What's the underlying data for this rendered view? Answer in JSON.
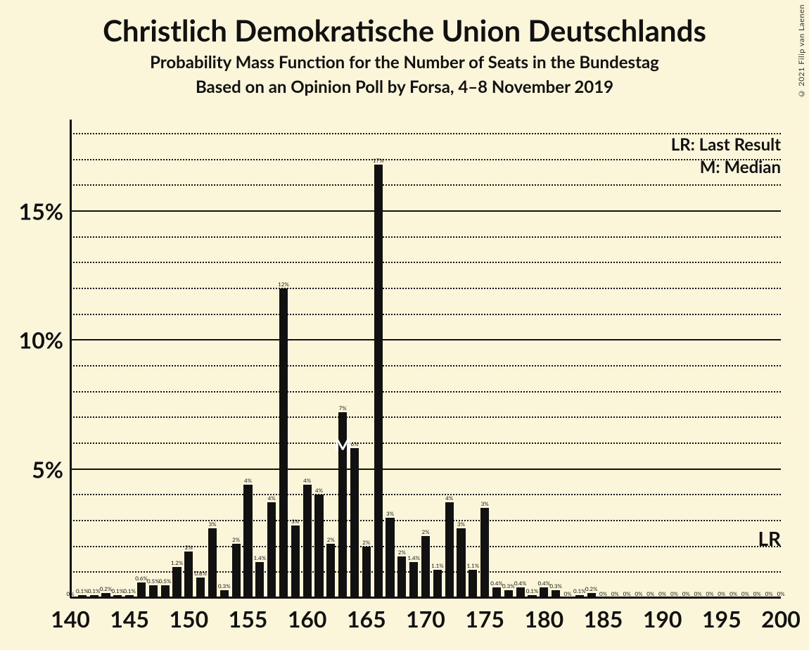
{
  "background_color": "#fbf6da",
  "bar_color": "#111111",
  "grid_color": "#111111",
  "title": "Christlich Demokratische Union Deutschlands",
  "subtitle1": "Probability Mass Function for the Number of Seats in the Bundestag",
  "subtitle2": "Based on an Opinion Poll by Forsa, 4–8 November 2019",
  "copyright": "© 2021 Filip van Laenen",
  "legend_lr": "LR: Last Result",
  "legend_m": "M: Median",
  "lr_text": "LR",
  "median_marker": "M",
  "median_seat": 163,
  "lr_y_percent": 2.3,
  "title_fontsize": 42,
  "subtitle_fontsize": 24,
  "axis_label_fontsize": 32,
  "legend_fontsize": 24,
  "bar_label_fontsize": 8,
  "y": {
    "min": 0,
    "max": 18,
    "major_ticks": [
      5,
      10,
      15
    ],
    "major_labels": [
      "5%",
      "10%",
      "15%"
    ],
    "minor_step": 1
  },
  "x": {
    "min": 140,
    "max": 200,
    "tick_step": 5,
    "tick_labels": [
      "140",
      "145",
      "150",
      "155",
      "160",
      "165",
      "170",
      "175",
      "180",
      "185",
      "190",
      "195",
      "200"
    ]
  },
  "bars": [
    {
      "seat": 140,
      "v": 0,
      "label": "0%"
    },
    {
      "seat": 141,
      "v": 0.1,
      "label": "0.1%"
    },
    {
      "seat": 142,
      "v": 0.1,
      "label": "0.1%"
    },
    {
      "seat": 143,
      "v": 0.2,
      "label": "0.2%"
    },
    {
      "seat": 144,
      "v": 0.1,
      "label": "0.1%"
    },
    {
      "seat": 145,
      "v": 0.1,
      "label": "0.1%"
    },
    {
      "seat": 146,
      "v": 0.6,
      "label": "0.6%"
    },
    {
      "seat": 147,
      "v": 0.5,
      "label": "0.5%"
    },
    {
      "seat": 148,
      "v": 0.5,
      "label": "0.5%"
    },
    {
      "seat": 149,
      "v": 1.2,
      "label": "1.2%"
    },
    {
      "seat": 150,
      "v": 1.8,
      "label": "2%"
    },
    {
      "seat": 151,
      "v": 0.8,
      "label": "0.8%"
    },
    {
      "seat": 152,
      "v": 2.7,
      "label": "3%"
    },
    {
      "seat": 153,
      "v": 0.3,
      "label": "0.3%"
    },
    {
      "seat": 154,
      "v": 2.1,
      "label": "2%"
    },
    {
      "seat": 155,
      "v": 4.4,
      "label": "4%"
    },
    {
      "seat": 156,
      "v": 1.4,
      "label": "1.4%"
    },
    {
      "seat": 157,
      "v": 3.7,
      "label": "4%"
    },
    {
      "seat": 158,
      "v": 12,
      "label": "12%"
    },
    {
      "seat": 159,
      "v": 2.8,
      "label": "3%"
    },
    {
      "seat": 160,
      "v": 4.4,
      "label": "4%"
    },
    {
      "seat": 161,
      "v": 4.0,
      "label": "4%"
    },
    {
      "seat": 162,
      "v": 2.1,
      "label": "2%"
    },
    {
      "seat": 163,
      "v": 7.2,
      "label": "7%"
    },
    {
      "seat": 164,
      "v": 5.8,
      "label": "6%"
    },
    {
      "seat": 165,
      "v": 2.0,
      "label": "2%"
    },
    {
      "seat": 166,
      "v": 16.8,
      "label": "17%"
    },
    {
      "seat": 167,
      "v": 3.1,
      "label": "3%"
    },
    {
      "seat": 168,
      "v": 1.6,
      "label": "2%"
    },
    {
      "seat": 169,
      "v": 1.4,
      "label": "1.4%"
    },
    {
      "seat": 170,
      "v": 2.4,
      "label": "2%"
    },
    {
      "seat": 171,
      "v": 1.1,
      "label": "1.1%"
    },
    {
      "seat": 172,
      "v": 3.7,
      "label": "4%"
    },
    {
      "seat": 173,
      "v": 2.7,
      "label": "3%"
    },
    {
      "seat": 174,
      "v": 1.1,
      "label": "1.1%"
    },
    {
      "seat": 175,
      "v": 3.5,
      "label": "3%"
    },
    {
      "seat": 176,
      "v": 0.4,
      "label": "0.4%"
    },
    {
      "seat": 177,
      "v": 0.3,
      "label": "0.3%"
    },
    {
      "seat": 178,
      "v": 0.4,
      "label": "0.4%"
    },
    {
      "seat": 179,
      "v": 0.1,
      "label": "0.1%"
    },
    {
      "seat": 180,
      "v": 0.4,
      "label": "0.4%"
    },
    {
      "seat": 181,
      "v": 0.3,
      "label": "0.3%"
    },
    {
      "seat": 182,
      "v": 0,
      "label": "0%"
    },
    {
      "seat": 183,
      "v": 0.1,
      "label": "0.1%"
    },
    {
      "seat": 184,
      "v": 0.2,
      "label": "0.2%"
    },
    {
      "seat": 185,
      "v": 0,
      "label": "0%"
    },
    {
      "seat": 186,
      "v": 0,
      "label": "0%"
    },
    {
      "seat": 187,
      "v": 0,
      "label": "0%"
    },
    {
      "seat": 188,
      "v": 0,
      "label": "0%"
    },
    {
      "seat": 189,
      "v": 0,
      "label": "0%"
    },
    {
      "seat": 190,
      "v": 0,
      "label": "0%"
    },
    {
      "seat": 191,
      "v": 0,
      "label": "0%"
    },
    {
      "seat": 192,
      "v": 0,
      "label": "0%"
    },
    {
      "seat": 193,
      "v": 0,
      "label": "0%"
    },
    {
      "seat": 194,
      "v": 0,
      "label": "0%"
    },
    {
      "seat": 195,
      "v": 0,
      "label": "0%"
    },
    {
      "seat": 196,
      "v": 0,
      "label": "0%"
    },
    {
      "seat": 197,
      "v": 0,
      "label": "0%"
    },
    {
      "seat": 198,
      "v": 0,
      "label": "0%"
    },
    {
      "seat": 199,
      "v": 0,
      "label": "0%"
    },
    {
      "seat": 200,
      "v": 0,
      "label": "0%"
    }
  ],
  "bar_width_ratio": 0.72
}
